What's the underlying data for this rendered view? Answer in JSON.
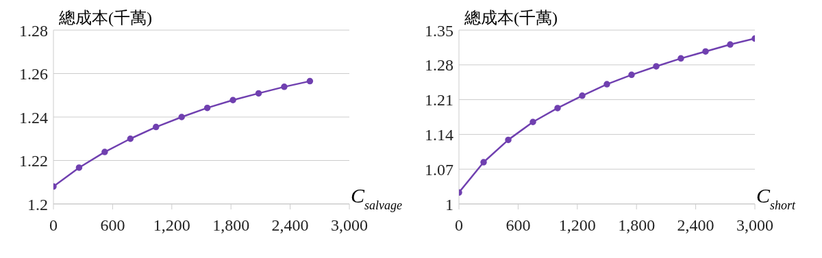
{
  "chart_data": [
    {
      "type": "line",
      "ylabel": "總成本(千萬)",
      "xlabel": "C$_{salvage}$",
      "x": [
        0,
        260,
        520,
        780,
        1040,
        1300,
        1560,
        1820,
        2080,
        2340,
        2600
      ],
      "series": [
        {
          "color": "#7040b0",
          "values": [
            1.208,
            1.2167,
            1.2239,
            1.23,
            1.2354,
            1.24,
            1.2442,
            1.2478,
            1.2509,
            1.2539,
            1.2565
          ]
        }
      ],
      "xlim": [
        0,
        3000
      ],
      "xticks": [
        {
          "value": 0,
          "label": "0"
        },
        {
          "value": 600,
          "label": "600"
        },
        {
          "value": 1200,
          "label": "1,200"
        },
        {
          "value": 1800,
          "label": "1,800"
        },
        {
          "value": 2400,
          "label": "2,400"
        },
        {
          "value": 3000,
          "label": "3,000"
        }
      ],
      "ylim": [
        1.2,
        1.28
      ],
      "yticks": [
        1.2,
        1.22,
        1.24,
        1.26,
        1.28
      ],
      "grid": "y",
      "marker": "circle",
      "line_style": "solid",
      "legend": false
    },
    {
      "type": "line",
      "ylabel": "總成本(千萬)",
      "xlabel": "C$_{short}$",
      "x": [
        0,
        250,
        500,
        750,
        1000,
        1250,
        1500,
        1750,
        2000,
        2250,
        2500,
        2750,
        3000
      ],
      "series": [
        {
          "color": "#7040b0",
          "values": [
            1.023,
            1.084,
            1.129,
            1.165,
            1.193,
            1.218,
            1.241,
            1.26,
            1.277,
            1.293,
            1.307,
            1.321,
            1.333
          ]
        }
      ],
      "xlim": [
        0,
        3000
      ],
      "xticks": [
        {
          "value": 0,
          "label": "0"
        },
        {
          "value": 600,
          "label": "600"
        },
        {
          "value": 1200,
          "label": "1,200"
        },
        {
          "value": 1800,
          "label": "1,800"
        },
        {
          "value": 2400,
          "label": "2,400"
        },
        {
          "value": 3000,
          "label": "3,000"
        }
      ],
      "ylim": [
        1,
        1.35
      ],
      "yticks": [
        1,
        1.07,
        1.14,
        1.21,
        1.28,
        1.35
      ],
      "grid": "y",
      "marker": "circle",
      "line_style": "solid",
      "legend": false
    }
  ]
}
